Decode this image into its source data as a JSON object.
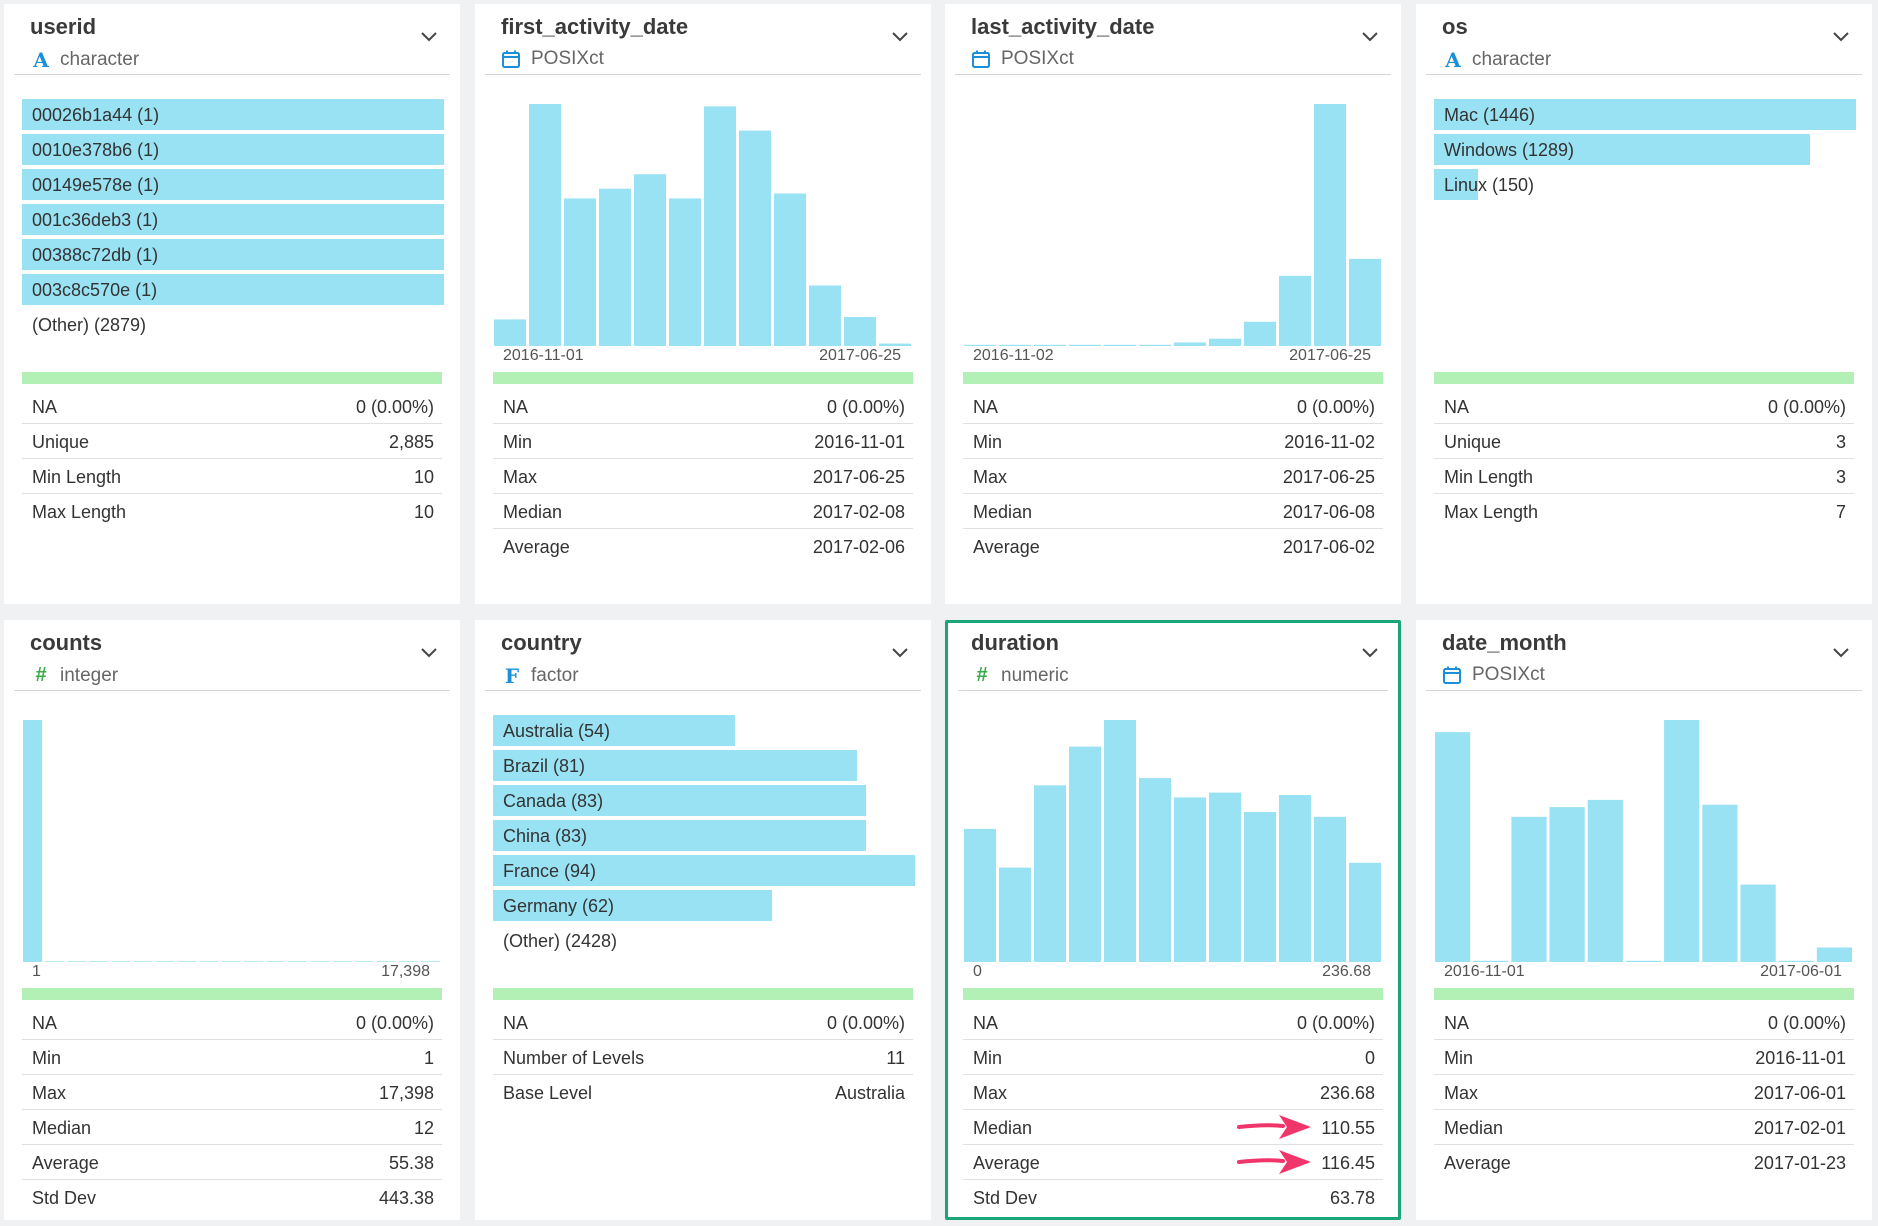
{
  "colors": {
    "bar": "#99e2f3",
    "green_bar": "#b3f0b5",
    "selected_border": "#1aa57a",
    "arrow": "#f0356b"
  },
  "cards": [
    {
      "name": "userid",
      "type_label": "character",
      "type_icon": "character-icon",
      "freq": [
        {
          "label": "00026b1a44 (1)",
          "fraction": 1.0
        },
        {
          "label": "0010e378b6 (1)",
          "fraction": 1.0
        },
        {
          "label": "00149e578e (1)",
          "fraction": 1.0
        },
        {
          "label": "001c36deb3 (1)",
          "fraction": 1.0
        },
        {
          "label": "00388c72db (1)",
          "fraction": 1.0
        },
        {
          "label": "003c8c570e (1)",
          "fraction": 1.0
        },
        {
          "label": "(Other) (2879)",
          "fraction": 0
        }
      ],
      "stats": [
        {
          "key": "NA",
          "value": "0 (0.00%)"
        },
        {
          "key": "Unique",
          "value": "2,885"
        },
        {
          "key": "Min Length",
          "value": "10"
        },
        {
          "key": "Max Length",
          "value": "10"
        }
      ]
    },
    {
      "name": "first_activity_date",
      "type_label": "POSIXct",
      "type_icon": "calendar-icon",
      "chart_data": {
        "type": "bar",
        "values": [
          11,
          100,
          61,
          65,
          71,
          61,
          99,
          89,
          63,
          25,
          12,
          1
        ],
        "xmin_label": "2016-11-01",
        "xmax_label": "2017-06-25"
      },
      "stats": [
        {
          "key": "NA",
          "value": "0 (0.00%)"
        },
        {
          "key": "Min",
          "value": "2016-11-01"
        },
        {
          "key": "Max",
          "value": "2017-06-25"
        },
        {
          "key": "Median",
          "value": "2017-02-08"
        },
        {
          "key": "Average",
          "value": "2017-02-06"
        }
      ]
    },
    {
      "name": "last_activity_date",
      "type_label": "POSIXct",
      "type_icon": "calendar-icon",
      "chart_data": {
        "type": "bar",
        "values": [
          0.5,
          0.5,
          0.5,
          0.5,
          0.5,
          0.5,
          1.5,
          3,
          10,
          29,
          100,
          36
        ],
        "xmin_label": "2016-11-02",
        "xmax_label": "2017-06-25"
      },
      "stats": [
        {
          "key": "NA",
          "value": "0 (0.00%)"
        },
        {
          "key": "Min",
          "value": "2016-11-02"
        },
        {
          "key": "Max",
          "value": "2017-06-25"
        },
        {
          "key": "Median",
          "value": "2017-06-08"
        },
        {
          "key": "Average",
          "value": "2017-06-02"
        }
      ]
    },
    {
      "name": "os",
      "type_label": "character",
      "type_icon": "character-icon",
      "freq": [
        {
          "label": "Mac (1446)",
          "fraction": 1.0
        },
        {
          "label": "Windows (1289)",
          "fraction": 0.891
        },
        {
          "label": "Linux (150)",
          "fraction": 0.104
        }
      ],
      "stats": [
        {
          "key": "NA",
          "value": "0 (0.00%)"
        },
        {
          "key": "Unique",
          "value": "3"
        },
        {
          "key": "Min Length",
          "value": "3"
        },
        {
          "key": "Max Length",
          "value": "7"
        }
      ]
    },
    {
      "name": "counts",
      "type_label": "integer",
      "type_icon": "hash-icon",
      "chart_data": {
        "type": "bar",
        "values": [
          100,
          0.3,
          0.3,
          0.3,
          0.3,
          0.3,
          0.3,
          0.3,
          0.3,
          0.3,
          0.3,
          0.3,
          0.3,
          0.3,
          0.3,
          0.3,
          0.3,
          0.3,
          0.3
        ],
        "xmin_label": "1",
        "xmax_label": "17,398"
      },
      "stats": [
        {
          "key": "NA",
          "value": "0 (0.00%)"
        },
        {
          "key": "Min",
          "value": "1"
        },
        {
          "key": "Max",
          "value": "17,398"
        },
        {
          "key": "Median",
          "value": "12"
        },
        {
          "key": "Average",
          "value": "55.38"
        },
        {
          "key": "Std Dev",
          "value": "443.38"
        }
      ]
    },
    {
      "name": "country",
      "type_label": "factor",
      "type_icon": "factor-icon",
      "freq": [
        {
          "label": "Australia (54)",
          "fraction": 0.574
        },
        {
          "label": "Brazil (81)",
          "fraction": 0.862
        },
        {
          "label": "Canada (83)",
          "fraction": 0.883
        },
        {
          "label": "China (83)",
          "fraction": 0.883
        },
        {
          "label": "France (94)",
          "fraction": 1.0
        },
        {
          "label": "Germany (62)",
          "fraction": 0.66
        },
        {
          "label": "(Other) (2428)",
          "fraction": 0
        }
      ],
      "stats": [
        {
          "key": "NA",
          "value": "0 (0.00%)"
        },
        {
          "key": "Number of Levels",
          "value": "11"
        },
        {
          "key": "Base Level",
          "value": "Australia"
        }
      ]
    },
    {
      "name": "duration",
      "type_label": "numeric",
      "type_icon": "hash-icon",
      "selected": true,
      "chart_data": {
        "type": "bar",
        "values": [
          55,
          39,
          73,
          89,
          100,
          76,
          68,
          70,
          62,
          69,
          60,
          41
        ],
        "xmin_label": "0",
        "xmax_label": "236.68"
      },
      "stats": [
        {
          "key": "NA",
          "value": "0 (0.00%)"
        },
        {
          "key": "Min",
          "value": "0"
        },
        {
          "key": "Max",
          "value": "236.68"
        },
        {
          "key": "Median",
          "value": "110.55",
          "arrow": true
        },
        {
          "key": "Average",
          "value": "116.45",
          "arrow": true
        },
        {
          "key": "Std Dev",
          "value": "63.78"
        }
      ]
    },
    {
      "name": "date_month",
      "type_label": "POSIXct",
      "type_icon": "calendar-icon",
      "chart_data": {
        "type": "bar",
        "values": [
          95,
          0.5,
          60,
          64,
          67,
          0.5,
          100,
          65,
          32,
          0.5,
          6
        ],
        "xmin_label": "2016-11-01",
        "xmax_label": "2017-06-01"
      },
      "stats": [
        {
          "key": "NA",
          "value": "0 (0.00%)"
        },
        {
          "key": "Min",
          "value": "2016-11-01"
        },
        {
          "key": "Max",
          "value": "2017-06-01"
        },
        {
          "key": "Median",
          "value": "2017-02-01"
        },
        {
          "key": "Average",
          "value": "2017-01-23"
        }
      ]
    }
  ]
}
